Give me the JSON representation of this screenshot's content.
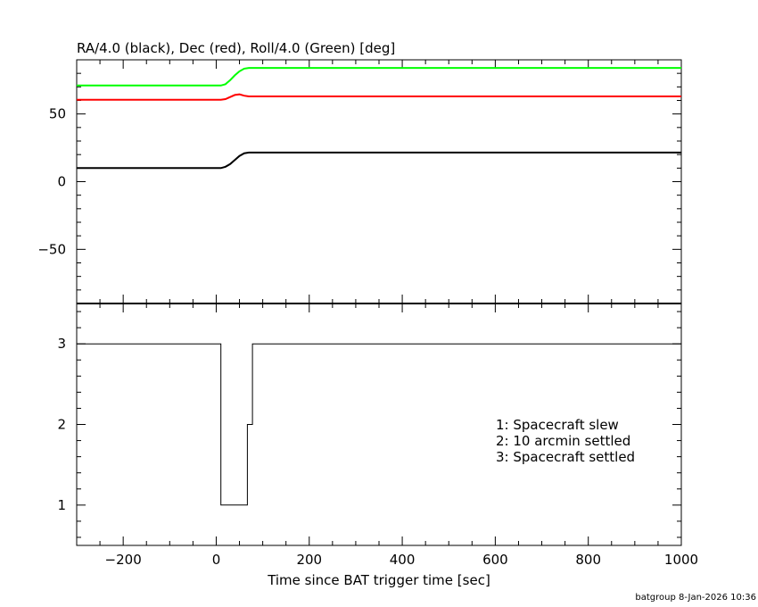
{
  "chart_data": [
    {
      "type": "line",
      "title": "RA/4.0 (black), Dec (red), Roll/4.0 (Green) [deg]",
      "xlim": [
        -300,
        1000
      ],
      "ylim": [
        -90,
        90
      ],
      "yticks": [
        -50,
        0,
        50
      ],
      "ytick_labels": [
        "−50",
        "0",
        "50"
      ],
      "grid": false,
      "series": [
        {
          "color": "#000000",
          "x": [
            -300,
            0,
            10,
            20,
            30,
            40,
            50,
            60,
            70,
            80,
            1000
          ],
          "y": [
            10,
            10,
            10,
            11,
            13,
            16,
            19,
            21,
            21.5,
            21.5,
            21.5
          ]
        },
        {
          "color": "#ff0000",
          "x": [
            -300,
            0,
            10,
            20,
            30,
            40,
            50,
            60,
            70,
            80,
            1000
          ],
          "y": [
            60.5,
            60.5,
            60.5,
            61,
            62.5,
            64,
            64.5,
            63.5,
            63,
            63,
            63
          ]
        },
        {
          "color": "#00ff00",
          "x": [
            -300,
            0,
            10,
            20,
            30,
            40,
            50,
            60,
            70,
            80,
            1000
          ],
          "y": [
            71,
            71,
            71,
            72,
            75,
            78.5,
            81.5,
            83.5,
            84,
            84,
            84
          ]
        }
      ]
    },
    {
      "type": "line",
      "xlabel": "Time since BAT trigger time [sec]",
      "xlim": [
        -300,
        1000
      ],
      "ylim": [
        0.5,
        3.5
      ],
      "xticks": [
        -200,
        0,
        200,
        400,
        600,
        800,
        1000
      ],
      "xtick_labels": [
        "−200",
        "0",
        "200",
        "400",
        "600",
        "800",
        "1000"
      ],
      "yticks": [
        1,
        2,
        3
      ],
      "ytick_labels": [
        "1",
        "2",
        "3"
      ],
      "grid": false,
      "series": [
        {
          "color": "#000000",
          "step": true,
          "x": [
            -300,
            10,
            10,
            67,
            67,
            78,
            78,
            1000
          ],
          "y": [
            3,
            3,
            1,
            1,
            2,
            2,
            3,
            3
          ]
        }
      ],
      "annotations": [
        "1: Spacecraft slew",
        "2: 10 arcmin settled",
        "3: Spacecraft settled"
      ]
    }
  ],
  "footer": "batgroup  8-Jan-2026 10:36"
}
